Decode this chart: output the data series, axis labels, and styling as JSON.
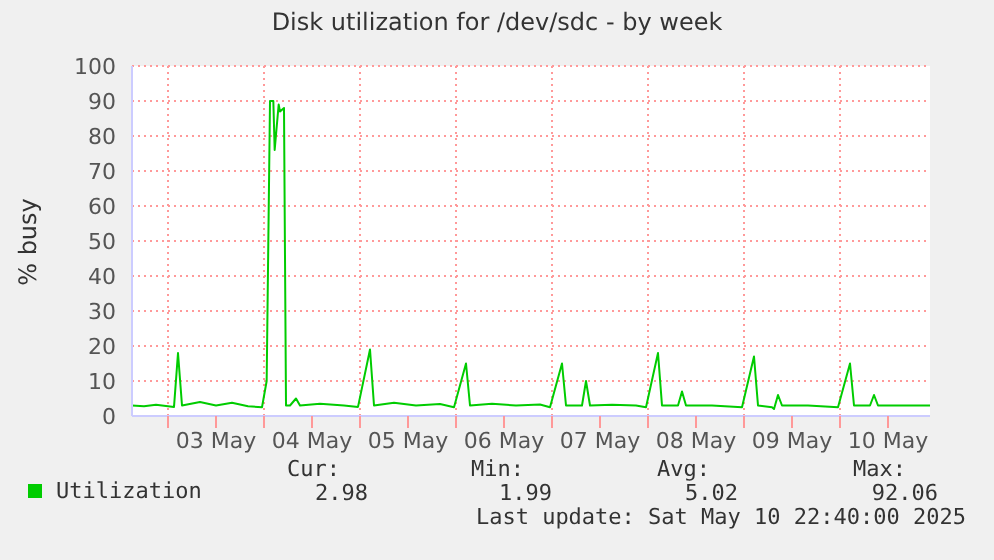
{
  "chart_data": {
    "type": "line",
    "title": "Disk utilization for /dev/sdc - by week",
    "ylabel": "% busy",
    "x": [
      "2025-05-02T15:00",
      "2025-05-02T18:00",
      "2025-05-02T21:00",
      "2025-05-03T01:30",
      "2025-05-03T02:30",
      "2025-05-03T03:30",
      "2025-05-03T08:00",
      "2025-05-03T12:00",
      "2025-05-03T16:00",
      "2025-05-03T20:00",
      "2025-05-03T23:30",
      "2025-05-04T00:40",
      "2025-05-04T01:30",
      "2025-05-04T02:20",
      "2025-05-04T02:40",
      "2025-05-04T03:40",
      "2025-05-04T04:00",
      "2025-05-04T05:00",
      "2025-05-04T05:30",
      "2025-05-04T06:30",
      "2025-05-04T08:00",
      "2025-05-04T09:00",
      "2025-05-04T14:00",
      "2025-05-04T20:00",
      "2025-05-04T23:30",
      "2025-05-05T02:30",
      "2025-05-05T03:30",
      "2025-05-05T08:30",
      "2025-05-05T14:00",
      "2025-05-05T20:00",
      "2025-05-05T23:30",
      "2025-05-06T02:30",
      "2025-05-06T03:30",
      "2025-05-06T09:00",
      "2025-05-06T15:00",
      "2025-05-06T21:00",
      "2025-05-06T23:30",
      "2025-05-07T02:30",
      "2025-05-07T03:30",
      "2025-05-07T07:30",
      "2025-05-07T08:30",
      "2025-05-07T09:30",
      "2025-05-07T15:00",
      "2025-05-07T21:00",
      "2025-05-07T23:30",
      "2025-05-08T02:30",
      "2025-05-08T03:30",
      "2025-05-08T07:30",
      "2025-05-08T08:30",
      "2025-05-08T09:30",
      "2025-05-08T16:00",
      "2025-05-08T23:30",
      "2025-05-09T02:30",
      "2025-05-09T03:30",
      "2025-05-09T07:00",
      "2025-05-09T07:30",
      "2025-05-09T08:30",
      "2025-05-09T09:30",
      "2025-05-09T16:00",
      "2025-05-09T23:30",
      "2025-05-10T02:30",
      "2025-05-10T03:30",
      "2025-05-10T07:30",
      "2025-05-10T08:30",
      "2025-05-10T09:30",
      "2025-05-10T16:00",
      "2025-05-10T22:30"
    ],
    "series": [
      {
        "name": "Utilization",
        "color": "#00cc00",
        "values": [
          3,
          2.8,
          3.2,
          2.6,
          18,
          3,
          4,
          3,
          3.8,
          2.8,
          2.5,
          10,
          90,
          90,
          76,
          89,
          87,
          88,
          3,
          3,
          5,
          3,
          3.5,
          3,
          2.6,
          19,
          3,
          3.8,
          3,
          3.4,
          2.5,
          15,
          3,
          3.5,
          3,
          3.3,
          2.5,
          15,
          3,
          3,
          10,
          3,
          3.2,
          3,
          2.5,
          18,
          3,
          3,
          7,
          3,
          3,
          2.5,
          17,
          3,
          2.5,
          2,
          6,
          3,
          3,
          2.5,
          15,
          3,
          3,
          6,
          3,
          3,
          3
        ]
      }
    ],
    "xlim": [
      "2025-05-02T15:00",
      "2025-05-10T22:30"
    ],
    "xticks": [
      {
        "value": "2025-05-03T00:00",
        "label": null
      },
      {
        "value": "2025-05-03T12:00",
        "label": "03 May"
      },
      {
        "value": "2025-05-04T00:00",
        "label": null
      },
      {
        "value": "2025-05-04T12:00",
        "label": "04 May"
      },
      {
        "value": "2025-05-05T00:00",
        "label": null
      },
      {
        "value": "2025-05-05T12:00",
        "label": "05 May"
      },
      {
        "value": "2025-05-06T00:00",
        "label": null
      },
      {
        "value": "2025-05-06T12:00",
        "label": "06 May"
      },
      {
        "value": "2025-05-07T00:00",
        "label": null
      },
      {
        "value": "2025-05-07T12:00",
        "label": "07 May"
      },
      {
        "value": "2025-05-08T00:00",
        "label": null
      },
      {
        "value": "2025-05-08T12:00",
        "label": "08 May"
      },
      {
        "value": "2025-05-09T00:00",
        "label": null
      },
      {
        "value": "2025-05-09T12:00",
        "label": "09 May"
      },
      {
        "value": "2025-05-10T00:00",
        "label": null
      },
      {
        "value": "2025-05-10T12:00",
        "label": "10 May"
      }
    ],
    "ylim": [
      0,
      100
    ],
    "yticks": [
      0,
      10,
      20,
      30,
      40,
      50,
      60,
      70,
      80,
      90,
      100
    ],
    "grid": true,
    "legend": "bottom left",
    "marker": "none",
    "line_style": "solid",
    "annotations": [
      "Cur:",
      "Min:",
      "Avg:",
      "Max:",
      "2.98",
      "1.99",
      "5.02",
      "92.06",
      "Last update: Sat May 10 22:40:00 2025"
    ]
  }
}
